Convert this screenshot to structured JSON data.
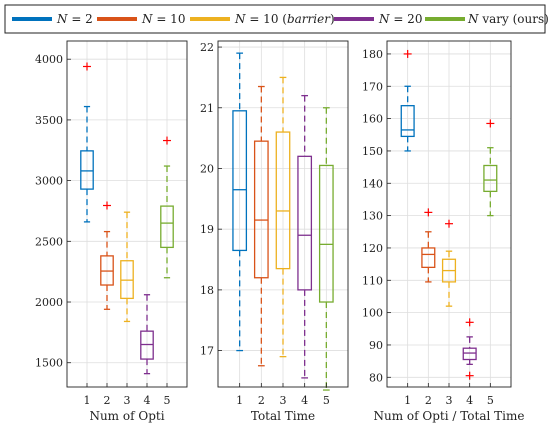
{
  "legend": [
    {
      "label": "N = 2",
      "color": "#0072BD"
    },
    {
      "label": "N = 10",
      "color": "#D95319"
    },
    {
      "label": "N = 10 (barrier)",
      "color": "#EDB120"
    },
    {
      "label": "N = 20",
      "color": "#7E2F8E"
    },
    {
      "label": "N vary (ours)",
      "color": "#77AC30"
    }
  ],
  "outlier_color": "#ff0000",
  "chart_data": [
    {
      "type": "box",
      "xlabel": "Num of Opti",
      "ylabel": "",
      "categories": [
        "1",
        "2",
        "3",
        "4",
        "5"
      ],
      "ylim": [
        1300,
        4150
      ],
      "yticks": [
        1500,
        2000,
        2500,
        3000,
        3500,
        4000
      ],
      "grid": true,
      "boxes": [
        {
          "min": 2660,
          "q1": 2930,
          "median": 3080,
          "q3": 3245,
          "max": 3610,
          "outliers": [
            3940
          ]
        },
        {
          "min": 1940,
          "q1": 2140,
          "median": 2255,
          "q3": 2380,
          "max": 2580,
          "outliers": [
            2795
          ]
        },
        {
          "min": 1840,
          "q1": 2030,
          "median": 2180,
          "q3": 2340,
          "max": 2740,
          "outliers": []
        },
        {
          "min": 1410,
          "q1": 1530,
          "median": 1650,
          "q3": 1760,
          "max": 2060,
          "outliers": []
        },
        {
          "min": 2200,
          "q1": 2450,
          "median": 2650,
          "q3": 2790,
          "max": 3120,
          "outliers": [
            3330
          ]
        }
      ]
    },
    {
      "type": "box",
      "xlabel": "Total Time",
      "ylabel": "",
      "categories": [
        "1",
        "2",
        "3",
        "4",
        "5"
      ],
      "ylim": [
        16.4,
        22.1
      ],
      "yticks": [
        17,
        18,
        19,
        20,
        21,
        22
      ],
      "grid": true,
      "boxes": [
        {
          "min": 17.0,
          "q1": 18.65,
          "median": 19.65,
          "q3": 20.95,
          "max": 21.9,
          "outliers": []
        },
        {
          "min": 16.75,
          "q1": 18.2,
          "median": 19.15,
          "q3": 20.45,
          "max": 21.35,
          "outliers": []
        },
        {
          "min": 16.9,
          "q1": 18.35,
          "median": 19.3,
          "q3": 20.6,
          "max": 21.5,
          "outliers": []
        },
        {
          "min": 16.55,
          "q1": 18.0,
          "median": 18.9,
          "q3": 20.2,
          "max": 21.2,
          "outliers": []
        },
        {
          "min": 16.35,
          "q1": 17.8,
          "median": 18.75,
          "q3": 20.05,
          "max": 21.0,
          "outliers": []
        }
      ]
    },
    {
      "type": "box",
      "xlabel": "Num of Opti / Total Time",
      "ylabel": "",
      "categories": [
        "1",
        "2",
        "3",
        "4",
        "5"
      ],
      "ylim": [
        77,
        184
      ],
      "yticks": [
        80,
        90,
        100,
        110,
        120,
        130,
        140,
        150,
        160,
        170,
        180
      ],
      "grid": true,
      "boxes": [
        {
          "min": 150,
          "q1": 154.5,
          "median": 156.5,
          "q3": 164,
          "max": 170,
          "outliers": [
            180
          ]
        },
        {
          "min": 109.5,
          "q1": 114,
          "median": 118,
          "q3": 120,
          "max": 125,
          "outliers": [
            131
          ]
        },
        {
          "min": 102,
          "q1": 109.5,
          "median": 113,
          "q3": 116.5,
          "max": 119,
          "outliers": [
            127.5
          ]
        },
        {
          "min": 84,
          "q1": 85.5,
          "median": 87.5,
          "q3": 89,
          "max": 92.5,
          "outliers": [
            97,
            80.5
          ]
        },
        {
          "min": 130,
          "q1": 137.5,
          "median": 141,
          "q3": 145.5,
          "max": 151,
          "outliers": [
            158.5
          ]
        }
      ]
    }
  ]
}
